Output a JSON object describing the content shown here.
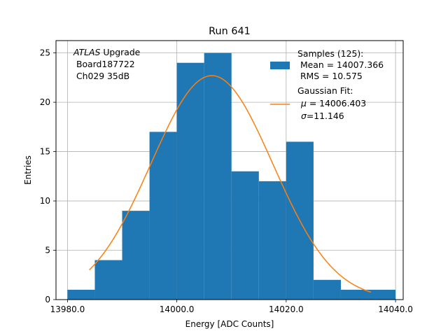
{
  "chart_data": {
    "type": "bar",
    "title": "Run 641",
    "xlabel": "Energy [ADC Counts]",
    "ylabel": "Entries",
    "xlim": [
      13977.9,
      14041.4
    ],
    "ylim": [
      0,
      26.25
    ],
    "x_ticks": [
      13980,
      14000,
      14020,
      14040
    ],
    "x_tick_labels": [
      "13980.0",
      "14000.0",
      "14020.0",
      "14040.0"
    ],
    "y_ticks": [
      0,
      5,
      10,
      15,
      20,
      25
    ],
    "y_tick_labels": [
      "0",
      "5",
      "10",
      "15",
      "20",
      "25"
    ],
    "grid": true,
    "bin_edges": [
      13980,
      13985,
      13990,
      13995,
      14000,
      14005,
      14010,
      14015,
      14020,
      14025,
      14030,
      14035,
      14040
    ],
    "counts": [
      1,
      4,
      9,
      17,
      24,
      25,
      13,
      12,
      16,
      2,
      1,
      1
    ],
    "fit": {
      "type": "gaussian",
      "amplitude": 22.7,
      "mu": 14006.403,
      "sigma": 11.146,
      "x_range": [
        13984,
        14035.5
      ]
    },
    "annotation": {
      "italic": "ATLAS",
      "rest": " Upgrade",
      "line2": " Board187722",
      "line3": " Ch029 35dB"
    },
    "legend": {
      "position": "top-right",
      "samples_title": "Samples (125):",
      "samples_mean": " Mean = 14007.366",
      "samples_rms": " RMS = 10.575",
      "fit_title": "Gaussian Fit:",
      "fit_mu_symbol": "μ",
      "fit_mu_value": " = 14006.403",
      "fit_sigma_symbol": "σ",
      "fit_sigma_value": "=11.146"
    },
    "colors": {
      "bar": "#1f77b4",
      "fit": "#ff7f0e",
      "grid": "#b0b0b0"
    }
  }
}
